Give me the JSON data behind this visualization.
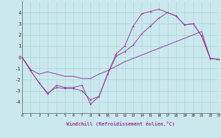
{
  "xlabel": "Windchill (Refroidissement éolien,°C)",
  "background_color": "#cbe8ef",
  "grid_color": "#a8d8d0",
  "line_color": "#993399",
  "x_hours": [
    0,
    1,
    2,
    3,
    4,
    5,
    6,
    7,
    8,
    9,
    10,
    11,
    12,
    13,
    14,
    15,
    16,
    17,
    18,
    19,
    20,
    21,
    22,
    23
  ],
  "line_jagged": [
    0.0,
    -1.2,
    -2.3,
    -3.3,
    -2.5,
    -2.7,
    -2.7,
    -2.5,
    -4.2,
    -3.5,
    -1.5,
    0.3,
    1.0,
    2.8,
    3.9,
    4.1,
    4.3,
    4.0,
    3.7,
    2.9,
    3.0,
    1.9,
    -0.1,
    -0.2
  ],
  "line_smooth": [
    0.0,
    -1.2,
    -2.3,
    -3.2,
    -2.7,
    -2.8,
    -2.8,
    -3.0,
    -3.8,
    -3.5,
    -1.5,
    0.1,
    0.5,
    1.1,
    2.1,
    2.8,
    3.5,
    4.0,
    3.7,
    2.9,
    3.0,
    1.9,
    -0.1,
    -0.2
  ],
  "line_diag": [
    0.0,
    -1.1,
    -1.5,
    -1.3,
    -1.5,
    -1.7,
    -1.7,
    -1.9,
    -1.9,
    -1.5,
    -1.2,
    -0.8,
    -0.4,
    -0.1,
    0.2,
    0.5,
    0.8,
    1.1,
    1.4,
    1.7,
    2.0,
    2.3,
    -0.1,
    -0.2
  ],
  "ylim": [
    -5,
    5
  ],
  "yticks": [
    -4,
    -3,
    -2,
    -1,
    0,
    1,
    2,
    3,
    4
  ],
  "xlim": [
    0,
    23
  ]
}
